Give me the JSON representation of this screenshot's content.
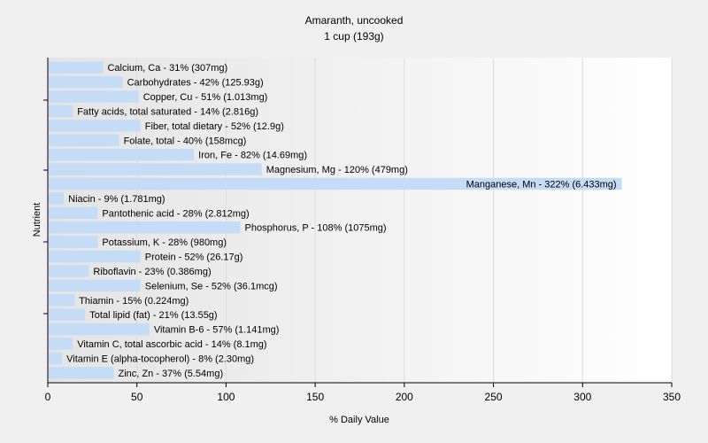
{
  "chart_data": {
    "type": "bar",
    "orientation": "horizontal",
    "title": "Amaranth, uncooked",
    "subtitle": "1 cup (193g)",
    "xlabel": "% Daily Value",
    "ylabel": "Nutrient",
    "xlim": [
      0,
      350
    ],
    "xticks": [
      "0",
      "50",
      "100",
      "150",
      "200",
      "250",
      "300",
      "350"
    ],
    "grid": true,
    "bar_color": "#c5dcf7",
    "categories": [
      "Calcium, Ca - 31% (307mg)",
      "Carbohydrates - 42% (125.93g)",
      "Copper, Cu - 51% (1.013mg)",
      "Fatty acids, total saturated - 14% (2.816g)",
      "Fiber, total dietary - 52% (12.9g)",
      "Folate, total - 40% (158mcg)",
      "Iron, Fe - 82% (14.69mg)",
      "Magnesium, Mg - 120% (479mg)",
      "Manganese, Mn - 322% (6.433mg)",
      "Niacin - 9% (1.781mg)",
      "Pantothenic acid - 28% (2.812mg)",
      "Phosphorus, P - 108% (1075mg)",
      "Potassium, K - 28% (980mg)",
      "Protein - 52% (26.17g)",
      "Riboflavin - 23% (0.386mg)",
      "Selenium, Se - 52% (36.1mcg)",
      "Thiamin - 15% (0.224mg)",
      "Total lipid (fat) - 21% (13.55g)",
      "Vitamin B-6 - 57% (1.141mg)",
      "Vitamin C, total ascorbic acid - 14% (8.1mg)",
      "Vitamin E (alpha-tocopherol) - 8% (2.30mg)",
      "Zinc, Zn - 37% (5.54mg)"
    ],
    "values": [
      31,
      42,
      51,
      14,
      52,
      40,
      82,
      120,
      322,
      9,
      28,
      108,
      28,
      52,
      23,
      52,
      15,
      21,
      57,
      14,
      8,
      37
    ]
  }
}
